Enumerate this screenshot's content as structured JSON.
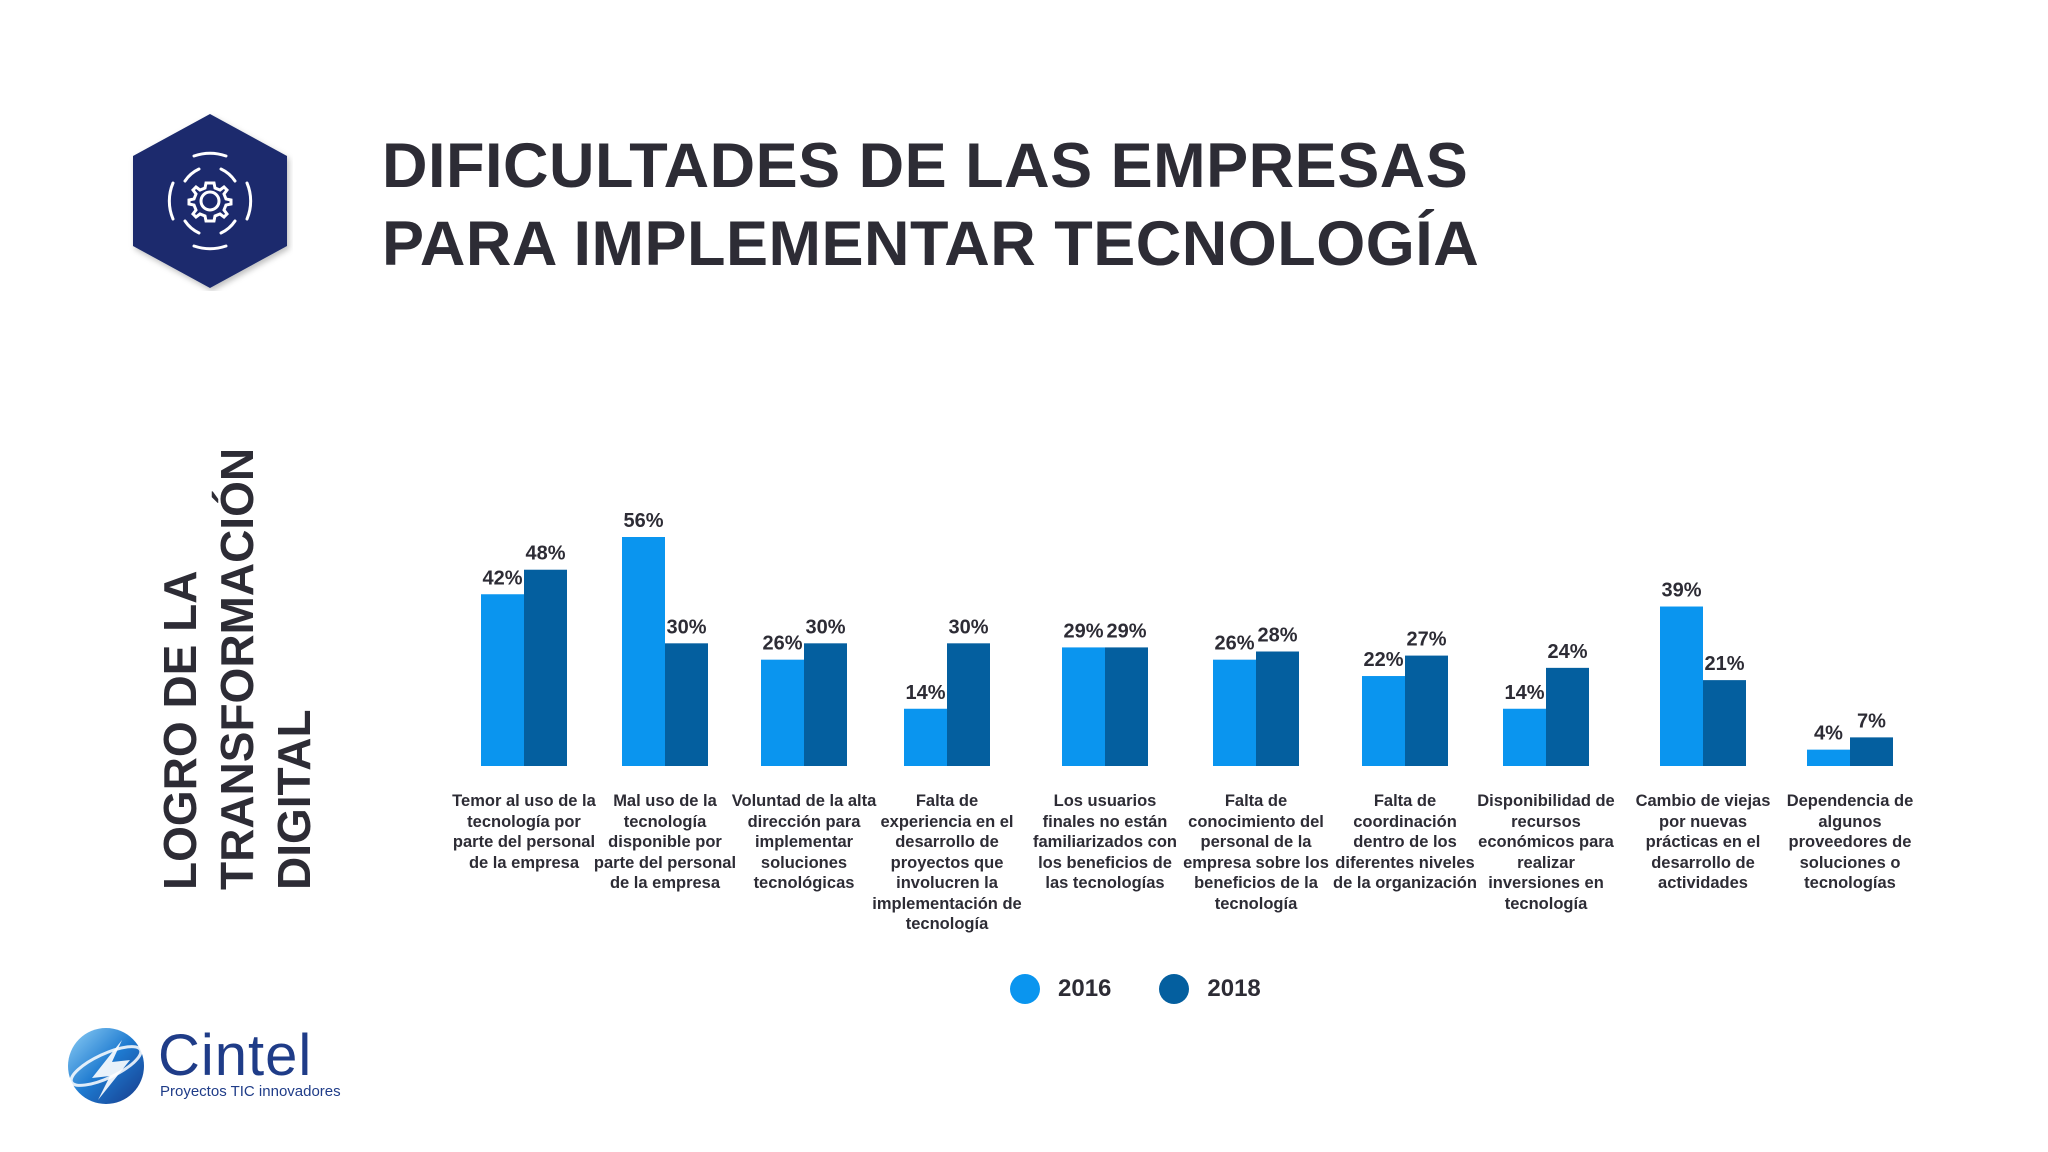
{
  "title": {
    "line1": "DIFICULTADES DE LAS EMPRESAS",
    "line2": "PARA IMPLEMENTAR TECNOLOGÍA"
  },
  "side_label": {
    "line1": "LOGRO DE LA",
    "line2": "TRANSFORMACIÓN",
    "line3": "DIGITAL"
  },
  "brand": {
    "name": "Cintel",
    "tagline": "Proyectos TIC innovadores",
    "icon": "gear-icon"
  },
  "colors": {
    "series_2016": "#0a95ef",
    "series_2018": "#045f9f",
    "hex_logo": "#1a2b6d",
    "brand": "#1f3c88"
  },
  "chart_data": {
    "type": "bar",
    "title": "DIFICULTADES DE LAS EMPRESAS PARA IMPLEMENTAR TECNOLOGÍA",
    "ylabel": "LOGRO DE LA TRANSFORMACIÓN DIGITAL",
    "ylim": [
      0,
      56
    ],
    "grid": false,
    "legend": "bottom",
    "categories": [
      "Temor al uso de la tecnología por parte del personal de la empresa",
      "Mal uso de la tecnología disponible por parte del personal de la empresa",
      "Voluntad de la alta dirección para implementar soluciones tecnológicas",
      "Falta de experiencia en el desarrollo de proyectos que involucren la implementación de tecnología",
      "Los usuarios finales no están familiarizados con los beneficios de las tecnologías",
      "Falta de conocimiento del personal de la empresa sobre los beneficios de la tecnología",
      "Falta de coordinación dentro de los diferentes niveles de la organización",
      "Disponibilidad de recursos económicos para realizar inversiones en tecnología",
      "Cambio de viejas por nuevas prácticas en el desarrollo de actividades",
      "Dependencia de algunos proveedores de soluciones o tecnologías"
    ],
    "series": [
      {
        "name": "2016",
        "values": [
          42,
          56,
          26,
          14,
          29,
          26,
          22,
          14,
          39,
          4
        ],
        "labels": [
          "42%",
          "56%",
          "26%",
          "14%",
          "29%",
          "26%",
          "22%",
          "14%",
          "39%",
          "4%"
        ]
      },
      {
        "name": "2018",
        "values": [
          48,
          30,
          30,
          30,
          29,
          28,
          27,
          24,
          21,
          7
        ],
        "labels": [
          "48%",
          "30%",
          "30%",
          "30%",
          "29%",
          "28%",
          "27%",
          "24%",
          "21%",
          "7%"
        ]
      }
    ]
  }
}
